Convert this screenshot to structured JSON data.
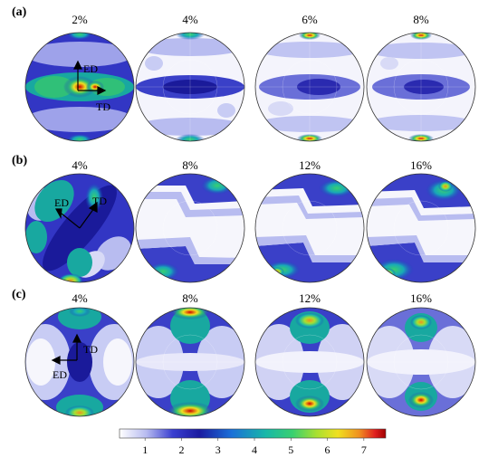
{
  "rows": [
    {
      "label": "(a)",
      "panels": [
        "2%",
        "4%",
        "6%",
        "8%"
      ],
      "axes": [
        "ED",
        "TD"
      ]
    },
    {
      "label": "(b)",
      "panels": [
        "4%",
        "8%",
        "12%",
        "16%"
      ],
      "axes": [
        "ED",
        "TD"
      ]
    },
    {
      "label": "(c)",
      "panels": [
        "4%",
        "8%",
        "12%",
        "16%"
      ],
      "axes": [
        "ED",
        "TD"
      ]
    }
  ],
  "colorbar": {
    "ticks": [
      "1",
      "2",
      "3",
      "4",
      "5",
      "6",
      "7"
    ],
    "min": 0.3,
    "max": 7.6,
    "colors": [
      "#ffffff",
      "#3a3fd0",
      "#1a1aa0",
      "#1a6fd8",
      "#18b8a8",
      "#38d070",
      "#a8e030",
      "#f0e020",
      "#f09020",
      "#e02020",
      "#a00000"
    ]
  }
}
